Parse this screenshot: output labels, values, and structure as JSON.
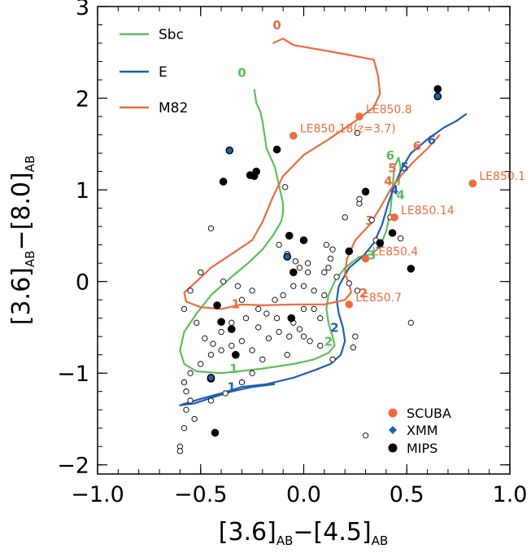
{
  "chart_data": {
    "type": "scatter",
    "xlabel": {
      "base1": "[3.6]",
      "sub1": "AB",
      "mid": "−[4.5]",
      "sub2": "AB"
    },
    "ylabel": {
      "base1": "[3.6]",
      "sub1": "AB",
      "mid": "−[8.0]",
      "sub2": "AB"
    },
    "xlim": [
      -1.0,
      1.0
    ],
    "ylim": [
      -2.1,
      3.0
    ],
    "x_ticks": [
      {
        "v": -1.0,
        "label": "−1.0"
      },
      {
        "v": -0.5,
        "label": "−0.5"
      },
      {
        "v": 0.0,
        "label": "0.0"
      },
      {
        "v": 0.5,
        "label": "0.5"
      },
      {
        "v": 1.0,
        "label": "1.0"
      }
    ],
    "y_ticks": [
      {
        "v": -2,
        "label": "−2"
      },
      {
        "v": -1,
        "label": "−1"
      },
      {
        "v": 0,
        "label": "0"
      },
      {
        "v": 1,
        "label": "1"
      },
      {
        "v": 2,
        "label": "2"
      },
      {
        "v": 3,
        "label": "3"
      }
    ],
    "colors": {
      "sbc": "#5cbf5c",
      "e": "#1f5fae",
      "m82": "#ef6a3c",
      "scuba": "#ef6a3c",
      "xmm": "#1f5fae",
      "mips": "#000000"
    },
    "track_legend": [
      {
        "name": "Sbc",
        "color": "#5cbf5c"
      },
      {
        "name": "E",
        "color": "#1f5fae"
      },
      {
        "name": "M82",
        "color": "#ef6a3c"
      }
    ],
    "point_legend": [
      {
        "name": "SCUBA",
        "color": "#ef6a3c",
        "marker": "circle"
      },
      {
        "name": "XMM",
        "color": "#1f5fae",
        "marker": "diamond"
      },
      {
        "name": "MIPS",
        "color": "#000000",
        "marker": "circle"
      }
    ],
    "tracks": [
      {
        "name": "Sbc",
        "color": "#5cbf5c",
        "points": [
          [
            -0.24,
            2.1
          ],
          [
            -0.23,
            1.95
          ],
          [
            -0.21,
            1.85
          ],
          [
            -0.2,
            1.75
          ],
          [
            -0.19,
            1.6
          ],
          [
            -0.18,
            1.45
          ],
          [
            -0.16,
            1.35
          ],
          [
            -0.14,
            1.25
          ],
          [
            -0.13,
            1.15
          ],
          [
            -0.12,
            1.05
          ],
          [
            -0.11,
            0.95
          ],
          [
            -0.1,
            0.85
          ],
          [
            -0.1,
            0.75
          ],
          [
            -0.11,
            0.65
          ],
          [
            -0.15,
            0.5
          ],
          [
            -0.2,
            0.35
          ],
          [
            -0.27,
            0.2
          ],
          [
            -0.35,
            0.05
          ],
          [
            -0.45,
            -0.15
          ],
          [
            -0.52,
            -0.35
          ],
          [
            -0.58,
            -0.55
          ],
          [
            -0.6,
            -0.75
          ],
          [
            -0.58,
            -0.9
          ],
          [
            -0.52,
            -0.98
          ],
          [
            -0.4,
            -1.0
          ],
          [
            -0.2,
            -0.95
          ],
          [
            -0.05,
            -0.9
          ],
          [
            0.05,
            -0.85
          ],
          [
            0.12,
            -0.78
          ],
          [
            0.15,
            -0.7
          ],
          [
            0.14,
            -0.6
          ],
          [
            0.12,
            -0.45
          ],
          [
            0.11,
            -0.3
          ],
          [
            0.12,
            -0.15
          ],
          [
            0.15,
            0.0
          ],
          [
            0.2,
            0.15
          ],
          [
            0.27,
            0.27
          ],
          [
            0.33,
            0.3
          ],
          [
            0.37,
            0.38
          ],
          [
            0.4,
            0.55
          ],
          [
            0.42,
            0.75
          ],
          [
            0.43,
            1.0
          ],
          [
            0.44,
            1.25
          ],
          [
            0.46,
            1.35
          ],
          [
            0.47,
            1.25
          ],
          [
            0.46,
            1.05
          ]
        ]
      },
      {
        "name": "E",
        "color": "#1f5fae",
        "points": [
          [
            -0.14,
            -1.12
          ],
          [
            -0.25,
            -1.15
          ],
          [
            -0.35,
            -1.2
          ],
          [
            -0.45,
            -1.27
          ],
          [
            -0.53,
            -1.33
          ],
          [
            -0.6,
            -1.35
          ],
          [
            -0.5,
            -1.28
          ],
          [
            -0.4,
            -1.22
          ],
          [
            -0.3,
            -1.15
          ],
          [
            -0.18,
            -1.12
          ],
          [
            -0.05,
            -1.05
          ],
          [
            0.05,
            -0.97
          ],
          [
            0.13,
            -0.9
          ],
          [
            0.18,
            -0.8
          ],
          [
            0.2,
            -0.65
          ],
          [
            0.19,
            -0.5
          ],
          [
            0.17,
            -0.35
          ],
          [
            0.16,
            -0.2
          ],
          [
            0.17,
            -0.05
          ],
          [
            0.22,
            0.15
          ],
          [
            0.29,
            0.28
          ],
          [
            0.34,
            0.42
          ],
          [
            0.38,
            0.62
          ],
          [
            0.41,
            0.85
          ],
          [
            0.44,
            1.05
          ],
          [
            0.48,
            1.25
          ],
          [
            0.52,
            1.4
          ],
          [
            0.6,
            1.55
          ],
          [
            0.68,
            1.68
          ],
          [
            0.74,
            1.75
          ],
          [
            0.79,
            1.83
          ]
        ]
      },
      {
        "name": "M82",
        "color": "#ef6a3c",
        "points": [
          [
            -0.15,
            2.6
          ],
          [
            -0.1,
            2.65
          ],
          [
            -0.05,
            2.58
          ],
          [
            0.1,
            2.52
          ],
          [
            0.2,
            2.48
          ],
          [
            0.34,
            2.42
          ],
          [
            0.36,
            2.25
          ],
          [
            0.37,
            2.05
          ],
          [
            0.34,
            1.9
          ],
          [
            0.25,
            1.75
          ],
          [
            0.12,
            1.55
          ],
          [
            0.0,
            1.38
          ],
          [
            -0.1,
            1.15
          ],
          [
            -0.15,
            0.92
          ],
          [
            -0.2,
            0.65
          ],
          [
            -0.25,
            0.45
          ],
          [
            -0.35,
            0.3
          ],
          [
            -0.45,
            0.15
          ],
          [
            -0.52,
            0.0
          ],
          [
            -0.58,
            -0.12
          ],
          [
            -0.57,
            -0.22
          ],
          [
            -0.5,
            -0.28
          ],
          [
            -0.4,
            -0.3
          ],
          [
            -0.3,
            -0.25
          ],
          [
            -0.2,
            -0.26
          ],
          [
            -0.05,
            -0.25
          ],
          [
            0.1,
            -0.25
          ],
          [
            0.2,
            -0.2
          ],
          [
            0.23,
            -0.12
          ],
          [
            0.22,
            -0.02
          ],
          [
            0.2,
            0.08
          ],
          [
            0.21,
            0.25
          ],
          [
            0.25,
            0.45
          ],
          [
            0.32,
            0.62
          ],
          [
            0.37,
            0.8
          ],
          [
            0.42,
            1.0
          ],
          [
            0.47,
            1.15
          ],
          [
            0.53,
            1.3
          ],
          [
            0.6,
            1.45
          ],
          [
            0.66,
            1.6
          ]
        ]
      }
    ],
    "redshift_labels": [
      {
        "text": "0",
        "x": -0.3,
        "y": 2.23,
        "color": "#5cbf5c"
      },
      {
        "text": "0",
        "x": -0.13,
        "y": 2.75,
        "color": "#ef6a3c"
      },
      {
        "text": "1",
        "x": -0.34,
        "y": -1.0,
        "color": "#5cbf5c"
      },
      {
        "text": "1",
        "x": -0.35,
        "y": -1.2,
        "color": "#1f5fae"
      },
      {
        "text": "1",
        "x": -0.33,
        "y": -0.29,
        "color": "#ef6a3c"
      },
      {
        "text": "2",
        "x": 0.12,
        "y": -0.7,
        "color": "#5cbf5c"
      },
      {
        "text": "2",
        "x": 0.15,
        "y": -0.55,
        "color": "#1f5fae"
      },
      {
        "text": "2",
        "x": 0.29,
        "y": -0.17,
        "color": "#ef6a3c"
      },
      {
        "text": "3",
        "x": 0.33,
        "y": 0.24,
        "color": "#5cbf5c"
      },
      {
        "text": "3",
        "x": 0.37,
        "y": 0.36,
        "color": "#1f5fae"
      },
      {
        "text": "3",
        "x": 0.32,
        "y": 0.62,
        "color": "#ef6a3c"
      },
      {
        "text": "4",
        "x": 0.47,
        "y": 0.9,
        "color": "#5cbf5c"
      },
      {
        "text": "4",
        "x": 0.44,
        "y": 0.95,
        "color": "#1f5fae"
      },
      {
        "text": "4",
        "x": 0.41,
        "y": 1.05,
        "color": "#ef6a3c"
      },
      {
        "text": "5",
        "x": 0.49,
        "y": 1.2,
        "color": "#1f5fae"
      },
      {
        "text": "5",
        "x": 0.43,
        "y": 1.19,
        "color": "#ef6a3c"
      },
      {
        "text": "6",
        "x": 0.42,
        "y": 1.33,
        "color": "#5cbf5c"
      },
      {
        "text": "6",
        "x": 0.62,
        "y": 1.5,
        "color": "#1f5fae"
      },
      {
        "text": "6",
        "x": 0.55,
        "y": 1.43,
        "color": "#ef6a3c"
      }
    ],
    "scuba_points": [
      {
        "x": -0.05,
        "y": 1.59,
        "label": "LE850.18(z=3.7)"
      },
      {
        "x": 0.27,
        "y": 1.8,
        "label": "LE850.8"
      },
      {
        "x": 0.82,
        "y": 1.07,
        "label": "LE850.1"
      },
      {
        "x": 0.44,
        "y": 0.7,
        "label": "LE850.14"
      },
      {
        "x": 0.3,
        "y": 0.25,
        "label": "LE850.4"
      },
      {
        "x": 0.22,
        "y": -0.25,
        "label": "LE850.7"
      }
    ],
    "xmm_points": [
      {
        "x": -0.36,
        "y": 1.43
      },
      {
        "x": -0.08,
        "y": 0.27
      },
      {
        "x": 0.65,
        "y": 2.02
      },
      {
        "x": -0.45,
        "y": -1.05
      }
    ],
    "mips_points": [
      {
        "x": 0.65,
        "y": 2.1
      },
      {
        "x": -0.13,
        "y": 1.44
      },
      {
        "x": -0.24,
        "y": 1.15
      },
      {
        "x": -0.23,
        "y": 1.2
      },
      {
        "x": -0.26,
        "y": 1.16
      },
      {
        "x": -0.39,
        "y": 1.09
      },
      {
        "x": 0.3,
        "y": 0.98
      },
      {
        "x": -0.07,
        "y": 0.5
      },
      {
        "x": 0.0,
        "y": 0.45
      },
      {
        "x": 0.37,
        "y": 0.42
      },
      {
        "x": 0.43,
        "y": 0.53
      },
      {
        "x": 0.22,
        "y": 0.33
      },
      {
        "x": -0.05,
        "y": 0.1
      },
      {
        "x": 0.52,
        "y": 0.14
      },
      {
        "x": -0.42,
        "y": -0.26
      },
      {
        "x": -0.4,
        "y": -0.44
      },
      {
        "x": -0.35,
        "y": -0.52
      },
      {
        "x": -0.33,
        "y": -0.8
      },
      {
        "x": -0.45,
        "y": -1.06
      },
      {
        "x": -0.06,
        "y": -0.4
      },
      {
        "x": -0.43,
        "y": -1.65
      }
    ],
    "open_points": [
      [
        -0.39,
        0.0
      ],
      [
        -0.32,
        -0.05
      ],
      [
        -0.25,
        -0.1
      ],
      [
        -0.22,
        -0.3
      ],
      [
        -0.18,
        -0.35
      ],
      [
        -0.14,
        -0.2
      ],
      [
        -0.1,
        -0.15
      ],
      [
        -0.05,
        -0.05
      ],
      [
        0.0,
        -0.05
      ],
      [
        0.05,
        -0.1
      ],
      [
        0.1,
        -0.15
      ],
      [
        -0.02,
        0.15
      ],
      [
        0.02,
        0.2
      ],
      [
        -0.08,
        0.3
      ],
      [
        -0.12,
        0.4
      ],
      [
        -0.09,
        1.03
      ],
      [
        0.11,
        0.4
      ],
      [
        0.14,
        0.35
      ],
      [
        0.2,
        0.7
      ],
      [
        0.27,
        0.85
      ],
      [
        0.33,
        0.67
      ],
      [
        0.47,
        0.47
      ],
      [
        0.35,
        0.45
      ],
      [
        0.42,
        0.7
      ],
      [
        0.52,
        -0.45
      ],
      [
        0.27,
        0.9
      ],
      [
        0.13,
        0.25
      ],
      [
        0.1,
        0.1
      ],
      [
        0.08,
        -0.4
      ],
      [
        0.05,
        -0.3
      ],
      [
        0.0,
        -0.3
      ],
      [
        -0.05,
        -0.45
      ],
      [
        0.0,
        -0.6
      ],
      [
        -0.08,
        -0.8
      ],
      [
        -0.2,
        -0.85
      ],
      [
        -0.25,
        -0.75
      ],
      [
        -0.3,
        -0.65
      ],
      [
        -0.35,
        -0.7
      ],
      [
        -0.4,
        -0.75
      ],
      [
        -0.45,
        -0.8
      ],
      [
        -0.5,
        -0.9
      ],
      [
        -0.55,
        -1.0
      ],
      [
        -0.58,
        -1.1
      ],
      [
        -0.57,
        -1.2
      ],
      [
        -0.55,
        -1.3
      ],
      [
        -0.57,
        -1.4
      ],
      [
        -0.58,
        -1.6
      ],
      [
        -0.6,
        -1.8
      ],
      [
        -0.6,
        -1.85
      ],
      [
        -0.53,
        -1.5
      ],
      [
        -0.45,
        -1.3
      ],
      [
        -0.38,
        -1.22
      ],
      [
        -0.3,
        -1.1
      ],
      [
        -0.25,
        -1.0
      ],
      [
        -0.45,
        0.58
      ],
      [
        -0.5,
        0.1
      ],
      [
        -0.55,
        -0.1
      ],
      [
        -0.58,
        -0.3
      ],
      [
        -0.52,
        -0.45
      ],
      [
        -0.48,
        -0.62
      ],
      [
        -0.44,
        -0.68
      ],
      [
        -0.4,
        -0.55
      ],
      [
        -0.35,
        -0.45
      ],
      [
        -0.28,
        -0.4
      ],
      [
        -0.22,
        -0.5
      ],
      [
        -0.17,
        -0.62
      ],
      [
        -0.12,
        -0.55
      ],
      [
        -0.07,
        -0.6
      ],
      [
        -0.02,
        -0.52
      ],
      [
        0.03,
        -0.65
      ],
      [
        0.08,
        -0.7
      ],
      [
        0.14,
        -0.85
      ],
      [
        0.24,
        -0.72
      ],
      [
        0.26,
        -0.1
      ],
      [
        0.22,
        -0.02
      ],
      [
        0.16,
        0.05
      ],
      [
        0.12,
        0.15
      ],
      [
        0.02,
        0.1
      ],
      [
        -0.04,
        0.22
      ],
      [
        0.3,
        -1.68
      ],
      [
        0.25,
        -0.6
      ],
      [
        0.26,
        1.62
      ],
      [
        -0.13,
        -0.4
      ],
      [
        -0.3,
        -0.2
      ]
    ]
  }
}
